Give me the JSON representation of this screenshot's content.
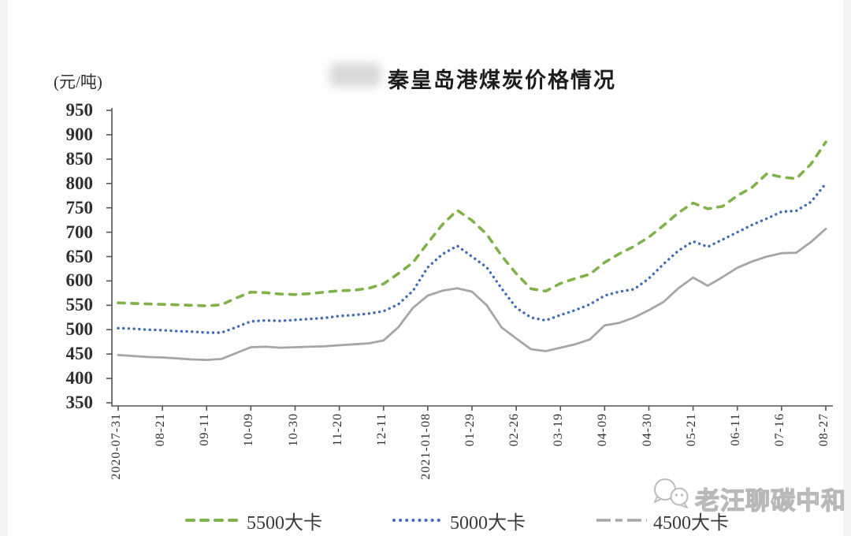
{
  "header": {
    "title": "秦皇岛港煤炭价格情况"
  },
  "watermark": {
    "text": "老汪聊碳中和"
  },
  "chart_data": {
    "type": "line",
    "title": "秦皇岛港煤炭价格情况",
    "y_unit": "(元/吨)",
    "ylim": [
      350,
      950
    ],
    "y_tick_step": 50,
    "y_ticks": [
      950,
      900,
      850,
      800,
      750,
      700,
      650,
      600,
      550,
      500,
      450,
      400,
      350
    ],
    "x_tick_labels": [
      "2020-07-31",
      "08-21",
      "09-11",
      "10-09",
      "10-30",
      "11-20",
      "12-11",
      "2021-01-08",
      "01-29",
      "02-26",
      "03-19",
      "04-09",
      "04-30",
      "05-21",
      "06-11",
      "07-16",
      "08-27"
    ],
    "label_every_n_points": 3,
    "grid": false,
    "legend_position": "bottom",
    "axis_color": "#555555",
    "series": [
      {
        "name": "5500大卡",
        "color": "#7fb24b",
        "style": "dashed",
        "values": [
          555,
          554,
          553,
          552,
          551,
          550,
          549,
          551,
          565,
          577,
          576,
          573,
          572,
          574,
          577,
          580,
          581,
          585,
          594,
          615,
          638,
          678,
          716,
          745,
          724,
          696,
          652,
          615,
          584,
          579,
          595,
          605,
          614,
          638,
          656,
          671,
          690,
          714,
          740,
          760,
          748,
          753,
          775,
          792,
          820,
          813,
          810,
          840,
          885
        ]
      },
      {
        "name": "5000大卡",
        "color": "#3f6cb3",
        "style": "dotted",
        "values": [
          503,
          502,
          500,
          499,
          497,
          496,
          494,
          494,
          505,
          517,
          519,
          518,
          520,
          522,
          524,
          528,
          530,
          533,
          538,
          552,
          580,
          628,
          655,
          672,
          650,
          628,
          585,
          545,
          525,
          519,
          530,
          540,
          552,
          570,
          578,
          583,
          605,
          635,
          662,
          681,
          670,
          685,
          700,
          715,
          728,
          742,
          744,
          762,
          800
        ]
      },
      {
        "name": "4500大卡",
        "color": "#a6a6a6",
        "style": "solid",
        "values": [
          448,
          446,
          444,
          443,
          441,
          439,
          438,
          440,
          452,
          464,
          465,
          463,
          464,
          465,
          466,
          468,
          470,
          472,
          478,
          505,
          545,
          570,
          580,
          585,
          578,
          550,
          505,
          482,
          460,
          456,
          463,
          470,
          480,
          509,
          514,
          525,
          540,
          557,
          585,
          607,
          590,
          608,
          627,
          640,
          650,
          657,
          658,
          680,
          707
        ]
      }
    ]
  }
}
